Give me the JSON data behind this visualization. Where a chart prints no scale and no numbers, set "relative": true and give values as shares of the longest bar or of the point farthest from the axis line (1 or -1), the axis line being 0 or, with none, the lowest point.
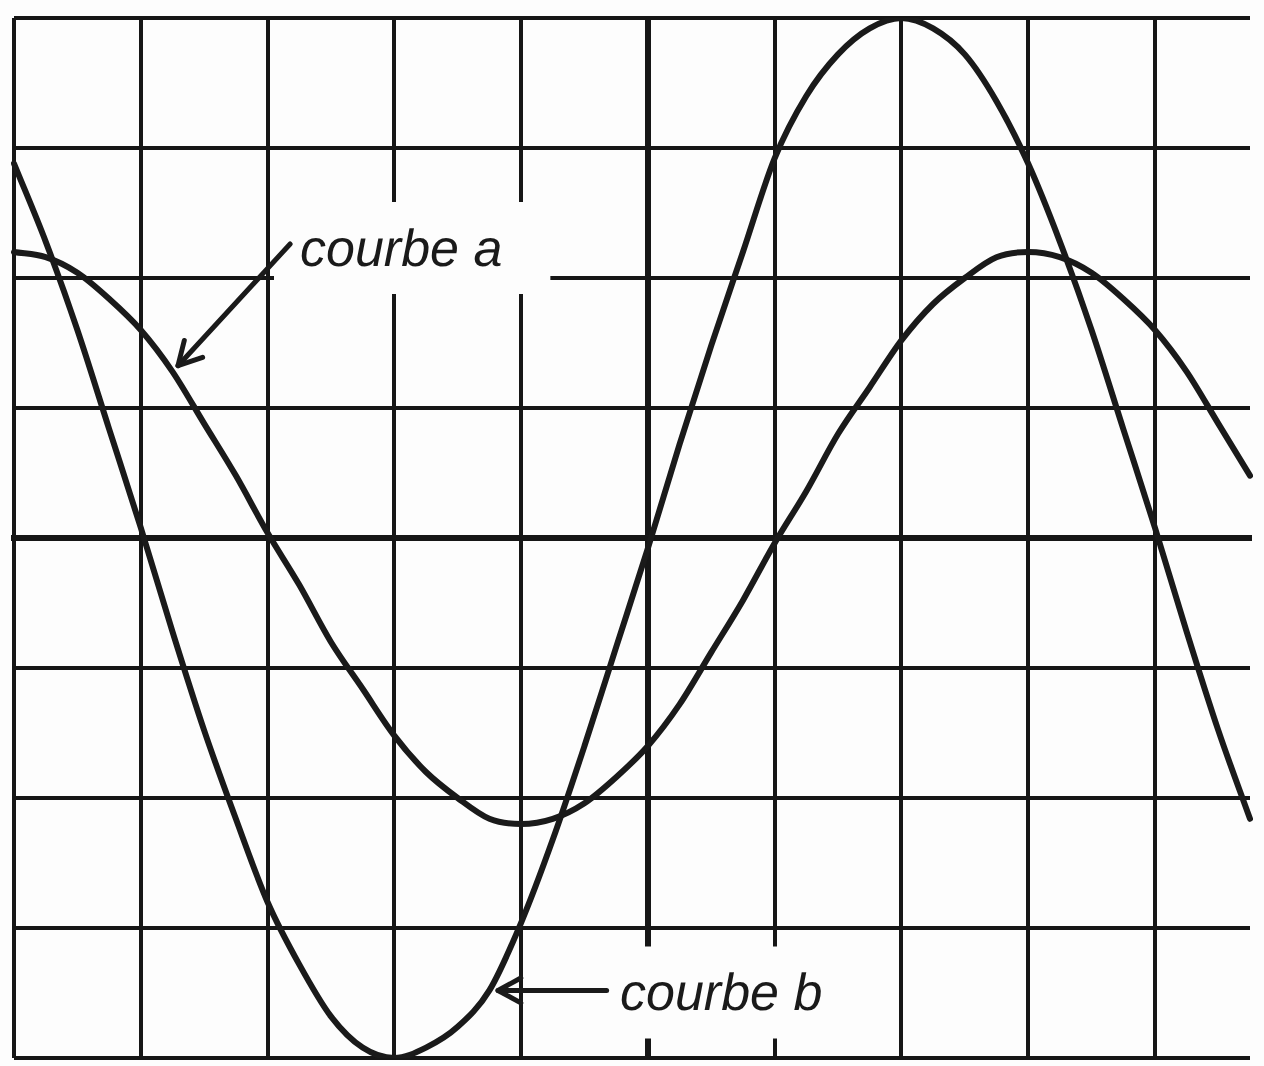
{
  "chart_data": {
    "type": "line",
    "relative": true,
    "grid": true,
    "marker": "none",
    "line_style": "solid",
    "categories": [
      null,
      null,
      null,
      null,
      null,
      null,
      null,
      null,
      null,
      null,
      null,
      null,
      null,
      null,
      null,
      null,
      null,
      null,
      null,
      null,
      null,
      null,
      null,
      null,
      null,
      null,
      null,
      null,
      null,
      null,
      null,
      null,
      null,
      null,
      null,
      null,
      null,
      null,
      null,
      null
    ],
    "series": [
      {
        "name": "courbe a",
        "color": "#1a1a1a",
        "values": [
          0.55,
          0.54,
          0.51,
          0.46,
          0.4,
          0.32,
          0.22,
          0.12,
          0.01,
          -0.09,
          -0.2,
          -0.29,
          -0.38,
          -0.45,
          -0.5,
          -0.54,
          -0.55,
          -0.54,
          -0.51,
          -0.46,
          -0.4,
          -0.32,
          -0.22,
          -0.12,
          -0.01,
          0.09,
          0.2,
          0.29,
          0.38,
          0.45,
          0.5,
          0.54,
          0.55,
          0.54,
          0.51,
          0.46,
          0.4,
          0.32,
          0.22,
          0.12
        ]
      },
      {
        "name": "courbe b",
        "color": "#1a1a1a",
        "values": [
          0.72,
          0.57,
          0.4,
          0.21,
          0.02,
          -0.18,
          -0.37,
          -0.54,
          -0.7,
          -0.82,
          -0.92,
          -0.98,
          -1.0,
          -0.98,
          -0.94,
          -0.87,
          -0.74,
          -0.58,
          -0.4,
          -0.21,
          -0.02,
          0.18,
          0.37,
          0.55,
          0.73,
          0.85,
          0.93,
          0.98,
          1.0,
          0.98,
          0.93,
          0.84,
          0.72,
          0.57,
          0.4,
          0.21,
          0.02,
          -0.18,
          -0.37,
          -0.54
        ]
      }
    ]
  }
}
